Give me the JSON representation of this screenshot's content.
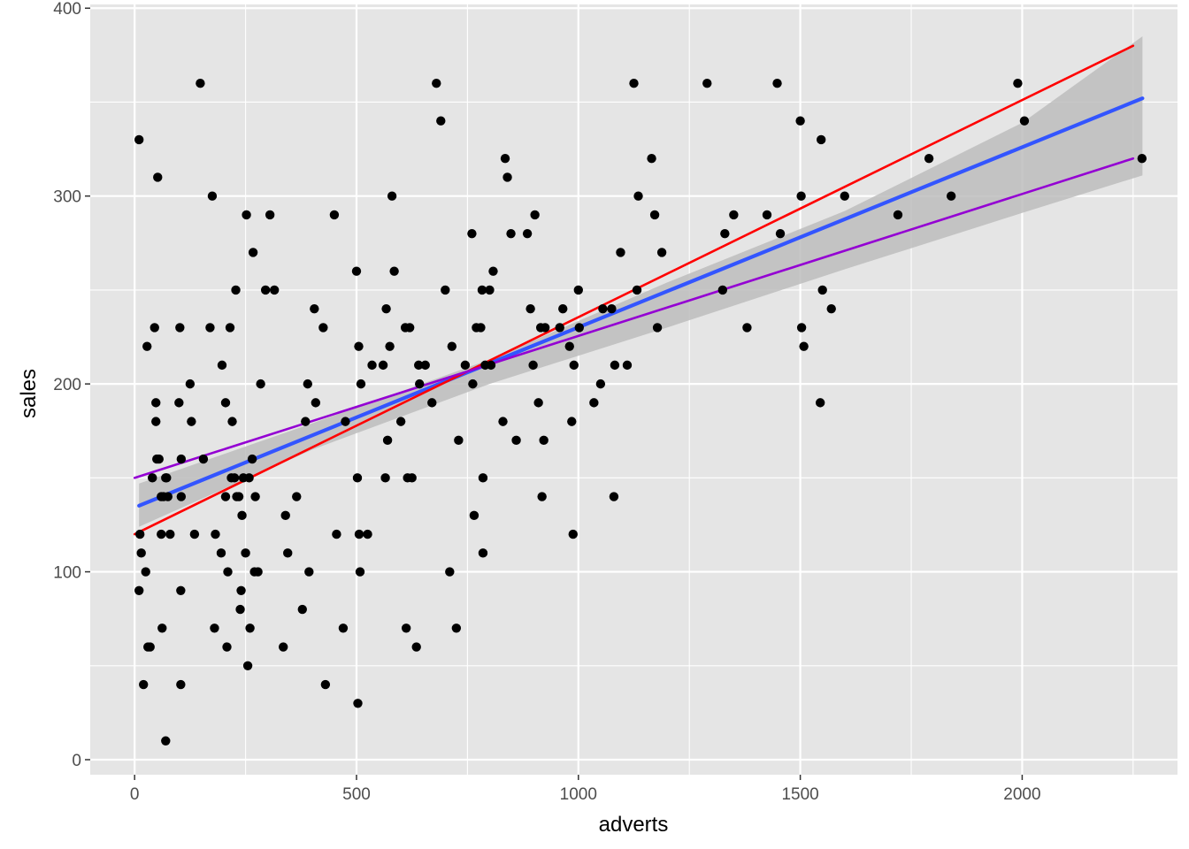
{
  "chart_data": {
    "type": "scatter",
    "xlabel": "adverts",
    "ylabel": "sales",
    "xlim": [
      -100,
      2350
    ],
    "ylim": [
      -8,
      402
    ],
    "x_ticks": [
      0,
      500,
      1000,
      1500,
      2000
    ],
    "y_ticks": [
      0,
      100,
      200,
      300,
      400
    ],
    "x_tick_labels": [
      "0",
      "500",
      "1000",
      "1500",
      "2000"
    ],
    "y_tick_labels": [
      "0",
      "100",
      "200",
      "300",
      "400"
    ],
    "grid": true,
    "legend": "none",
    "colors": {
      "panel_background": "#e5e5e5",
      "grid": "#ffffff",
      "points": "#000000",
      "fit_line": "#3355ff",
      "confidence_band": "#bdbdbd",
      "red_line": "#ff0000",
      "purple_line": "#9400d3"
    },
    "points": [
      [
        10,
        330
      ],
      [
        12,
        120
      ],
      [
        10,
        90
      ],
      [
        15,
        110
      ],
      [
        20,
        40
      ],
      [
        25,
        100
      ],
      [
        28,
        220
      ],
      [
        30,
        60
      ],
      [
        35,
        60
      ],
      [
        40,
        150
      ],
      [
        45,
        230
      ],
      [
        48,
        190
      ],
      [
        48,
        180
      ],
      [
        50,
        160
      ],
      [
        52,
        310
      ],
      [
        55,
        160
      ],
      [
        60,
        120
      ],
      [
        60,
        140
      ],
      [
        62,
        70
      ],
      [
        65,
        140
      ],
      [
        70,
        150
      ],
      [
        70,
        10
      ],
      [
        72,
        150
      ],
      [
        75,
        140
      ],
      [
        80,
        120
      ],
      [
        100,
        190
      ],
      [
        105,
        160
      ],
      [
        105,
        140
      ],
      [
        102,
        230
      ],
      [
        104,
        90
      ],
      [
        104,
        40
      ],
      [
        125,
        200
      ],
      [
        128,
        180
      ],
      [
        135,
        120
      ],
      [
        148,
        360
      ],
      [
        155,
        160
      ],
      [
        170,
        230
      ],
      [
        175,
        300
      ],
      [
        180,
        70
      ],
      [
        182,
        120
      ],
      [
        195,
        110
      ],
      [
        197,
        210
      ],
      [
        205,
        140
      ],
      [
        205,
        190
      ],
      [
        208,
        60
      ],
      [
        210,
        100
      ],
      [
        215,
        230
      ],
      [
        218,
        150
      ],
      [
        220,
        180
      ],
      [
        225,
        150
      ],
      [
        228,
        250
      ],
      [
        230,
        140
      ],
      [
        235,
        140
      ],
      [
        238,
        80
      ],
      [
        240,
        90
      ],
      [
        242,
        130
      ],
      [
        245,
        150
      ],
      [
        250,
        110
      ],
      [
        252,
        290
      ],
      [
        255,
        50
      ],
      [
        258,
        150
      ],
      [
        260,
        70
      ],
      [
        265,
        160
      ],
      [
        267,
        270
      ],
      [
        270,
        100
      ],
      [
        272,
        140
      ],
      [
        278,
        100
      ],
      [
        284,
        200
      ],
      [
        295,
        250
      ],
      [
        305,
        290
      ],
      [
        315,
        250
      ],
      [
        335,
        60
      ],
      [
        340,
        130
      ],
      [
        345,
        110
      ],
      [
        365,
        140
      ],
      [
        378,
        80
      ],
      [
        385,
        180
      ],
      [
        390,
        200
      ],
      [
        393,
        100
      ],
      [
        405,
        240
      ],
      [
        408,
        190
      ],
      [
        425,
        230
      ],
      [
        430,
        40
      ],
      [
        450,
        290
      ],
      [
        455,
        120
      ],
      [
        470,
        70
      ],
      [
        475,
        180
      ],
      [
        500,
        260
      ],
      [
        502,
        150
      ],
      [
        503,
        30
      ],
      [
        505,
        220
      ],
      [
        506,
        120
      ],
      [
        508,
        100
      ],
      [
        510,
        200
      ],
      [
        525,
        120
      ],
      [
        535,
        210
      ],
      [
        560,
        210
      ],
      [
        565,
        150
      ],
      [
        567,
        240
      ],
      [
        570,
        170
      ],
      [
        575,
        220
      ],
      [
        580,
        300
      ],
      [
        585,
        260
      ],
      [
        600,
        180
      ],
      [
        610,
        230
      ],
      [
        612,
        70
      ],
      [
        615,
        150
      ],
      [
        620,
        230
      ],
      [
        625,
        150
      ],
      [
        635,
        60
      ],
      [
        640,
        210
      ],
      [
        642,
        200
      ],
      [
        655,
        210
      ],
      [
        670,
        190
      ],
      [
        680,
        360
      ],
      [
        690,
        340
      ],
      [
        700,
        250
      ],
      [
        710,
        100
      ],
      [
        715,
        220
      ],
      [
        725,
        70
      ],
      [
        730,
        170
      ],
      [
        745,
        210
      ],
      [
        760,
        280
      ],
      [
        762,
        200
      ],
      [
        765,
        130
      ],
      [
        770,
        230
      ],
      [
        780,
        230
      ],
      [
        783,
        250
      ],
      [
        785,
        150
      ],
      [
        785,
        110
      ],
      [
        790,
        210
      ],
      [
        800,
        250
      ],
      [
        803,
        210
      ],
      [
        808,
        260
      ],
      [
        830,
        180
      ],
      [
        835,
        320
      ],
      [
        840,
        310
      ],
      [
        848,
        280
      ],
      [
        860,
        170
      ],
      [
        885,
        280
      ],
      [
        892,
        240
      ],
      [
        898,
        210
      ],
      [
        902,
        290
      ],
      [
        910,
        190
      ],
      [
        915,
        230
      ],
      [
        918,
        140
      ],
      [
        922,
        170
      ],
      [
        925,
        230
      ],
      [
        958,
        230
      ],
      [
        965,
        240
      ],
      [
        980,
        220
      ],
      [
        985,
        180
      ],
      [
        988,
        120
      ],
      [
        990,
        210
      ],
      [
        1000,
        250
      ],
      [
        1002,
        230
      ],
      [
        1035,
        190
      ],
      [
        1050,
        200
      ],
      [
        1055,
        240
      ],
      [
        1075,
        240
      ],
      [
        1080,
        140
      ],
      [
        1082,
        210
      ],
      [
        1095,
        270
      ],
      [
        1110,
        210
      ],
      [
        1125,
        360
      ],
      [
        1132,
        250
      ],
      [
        1135,
        300
      ],
      [
        1165,
        320
      ],
      [
        1172,
        290
      ],
      [
        1178,
        230
      ],
      [
        1188,
        270
      ],
      [
        1290,
        360
      ],
      [
        1325,
        250
      ],
      [
        1330,
        280
      ],
      [
        1350,
        290
      ],
      [
        1380,
        230
      ],
      [
        1425,
        290
      ],
      [
        1448,
        360
      ],
      [
        1455,
        280
      ],
      [
        1500,
        340
      ],
      [
        1502,
        300
      ],
      [
        1503,
        230
      ],
      [
        1508,
        220
      ],
      [
        1545,
        190
      ],
      [
        1547,
        330
      ],
      [
        1550,
        250
      ],
      [
        1570,
        240
      ],
      [
        1600,
        300
      ],
      [
        1720,
        290
      ],
      [
        1790,
        320
      ],
      [
        1840,
        300
      ],
      [
        1990,
        360
      ],
      [
        2005,
        340
      ],
      [
        2270,
        320
      ]
    ],
    "series": [
      {
        "kind": "linear-fit",
        "x": [
          10,
          2271
        ],
        "y": [
          135.2,
          352.0
        ]
      },
      {
        "kind": "line",
        "x": [
          0,
          2250
        ],
        "y": [
          120,
          380
        ]
      },
      {
        "kind": "line",
        "x": [
          0,
          2250
        ],
        "y": [
          150,
          320
        ]
      }
    ],
    "confidence_band": {
      "x": [
        10,
        400,
        800,
        1200,
        1600,
        2000,
        2271
      ],
      "lower": [
        124,
        165,
        200,
        230,
        261,
        291,
        311
      ],
      "upper": [
        147,
        179,
        213,
        254,
        292,
        339,
        385
      ]
    }
  }
}
